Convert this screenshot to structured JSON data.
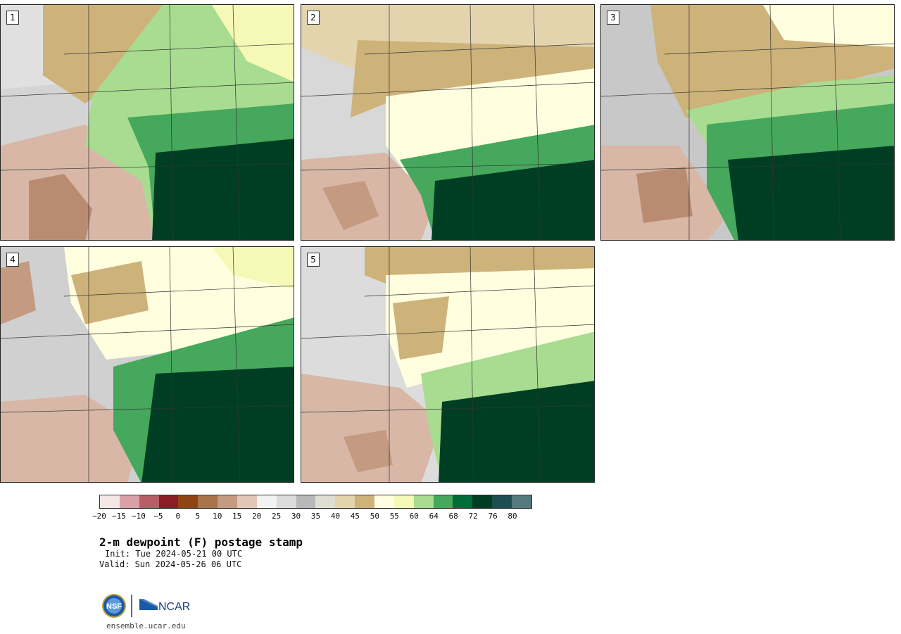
{
  "panels": [
    {
      "label": "1",
      "dry_fraction": 0.42
    },
    {
      "label": "2",
      "dry_fraction": 0.52
    },
    {
      "label": "3",
      "dry_fraction": 0.4
    },
    {
      "label": "4",
      "dry_fraction": 0.44
    },
    {
      "label": "5",
      "dry_fraction": 0.5
    }
  ],
  "colorbar": {
    "ticks": [
      "−20",
      "−15",
      "−10",
      "−5",
      "0",
      "5",
      "10",
      "15",
      "20",
      "25",
      "30",
      "35",
      "40",
      "45",
      "50",
      "55",
      "60",
      "64",
      "68",
      "72",
      "76",
      "80"
    ],
    "colors": [
      "#f5e6e6",
      "#d9a0a6",
      "#b85f66",
      "#8a1e24",
      "#8c4513",
      "#a8734a",
      "#c49a80",
      "#e2c6b6",
      "#f2f2f2",
      "#dcdcdc",
      "#b8b8b8",
      "#deded2",
      "#e4d4ae",
      "#cdb27a",
      "#ffffe0",
      "#f6f9b6",
      "#a8dc90",
      "#46a85c",
      "#006d38",
      "#003e24",
      "#1d4e50",
      "#537a7c"
    ]
  },
  "title": "2-m dewpoint (F) postage stamp",
  "init": "Init: Tue 2024-05-21 00 UTC",
  "valid": "Valid: Sun 2024-05-26 06 UTC",
  "logos": {
    "left_icon": "nsf-logo",
    "right_text": "NCAR",
    "right_icon": "ncar-logo"
  },
  "site": "ensemble.ucar.edu"
}
